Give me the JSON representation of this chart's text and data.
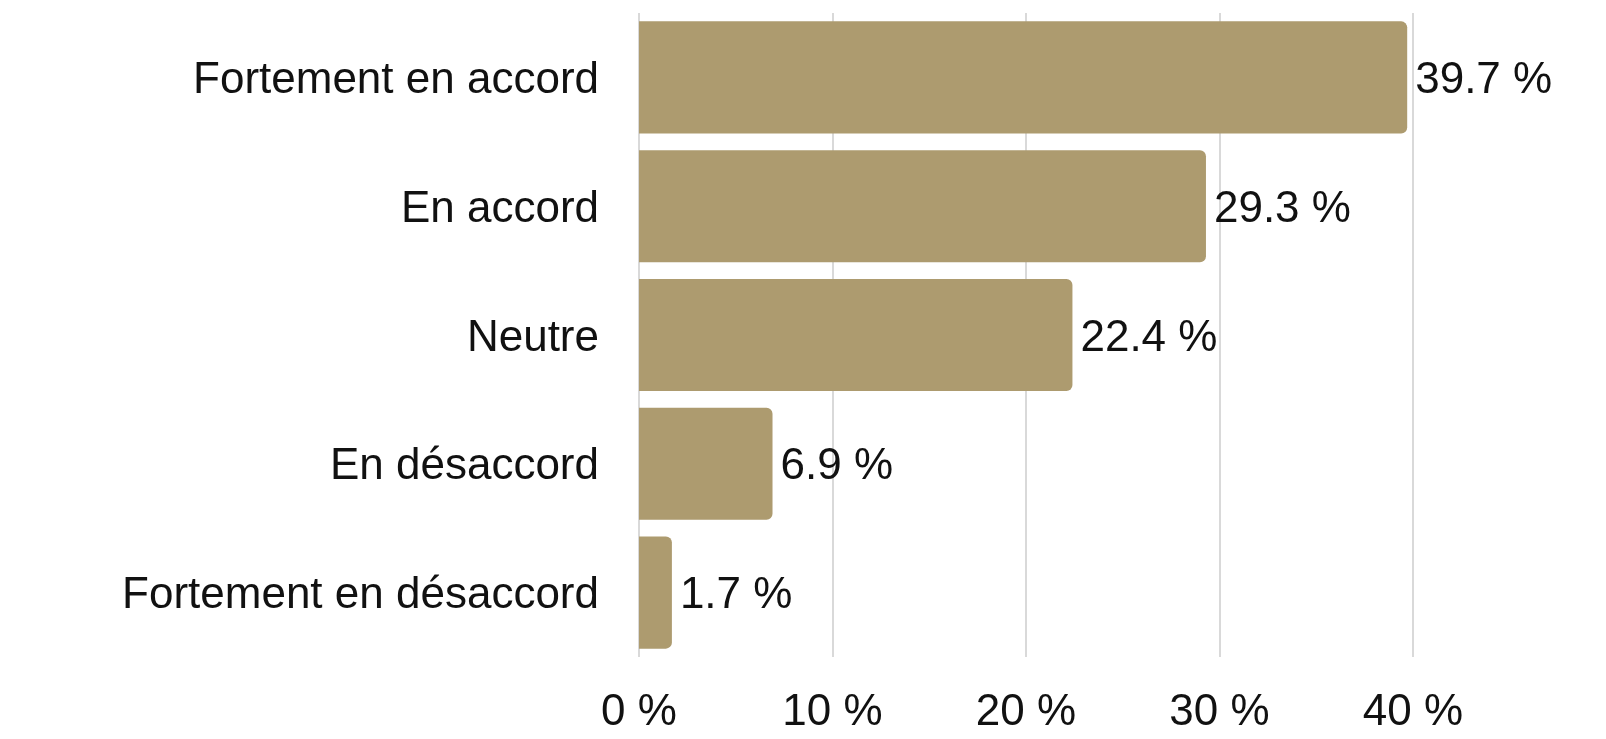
{
  "chart_data": {
    "type": "bar",
    "orientation": "horizontal",
    "categories": [
      "Fortement en accord",
      "En accord",
      "Neutre",
      "En désaccord",
      "Fortement en désaccord"
    ],
    "values": [
      39.7,
      29.3,
      22.4,
      6.9,
      1.7
    ],
    "value_labels": [
      "39.7 %",
      "29.3 %",
      "22.4 %",
      "6.9 %",
      "1.7 %"
    ],
    "color": "#ad9b6f",
    "xlim": [
      0,
      40
    ],
    "xticks": [
      {
        "value": 0,
        "label": "0 %"
      },
      {
        "value": 10,
        "label": "10 %"
      },
      {
        "value": 20,
        "label": "20 %"
      },
      {
        "value": 30,
        "label": "30 %"
      },
      {
        "value": 40,
        "label": "40 %"
      }
    ],
    "grid": "x"
  }
}
